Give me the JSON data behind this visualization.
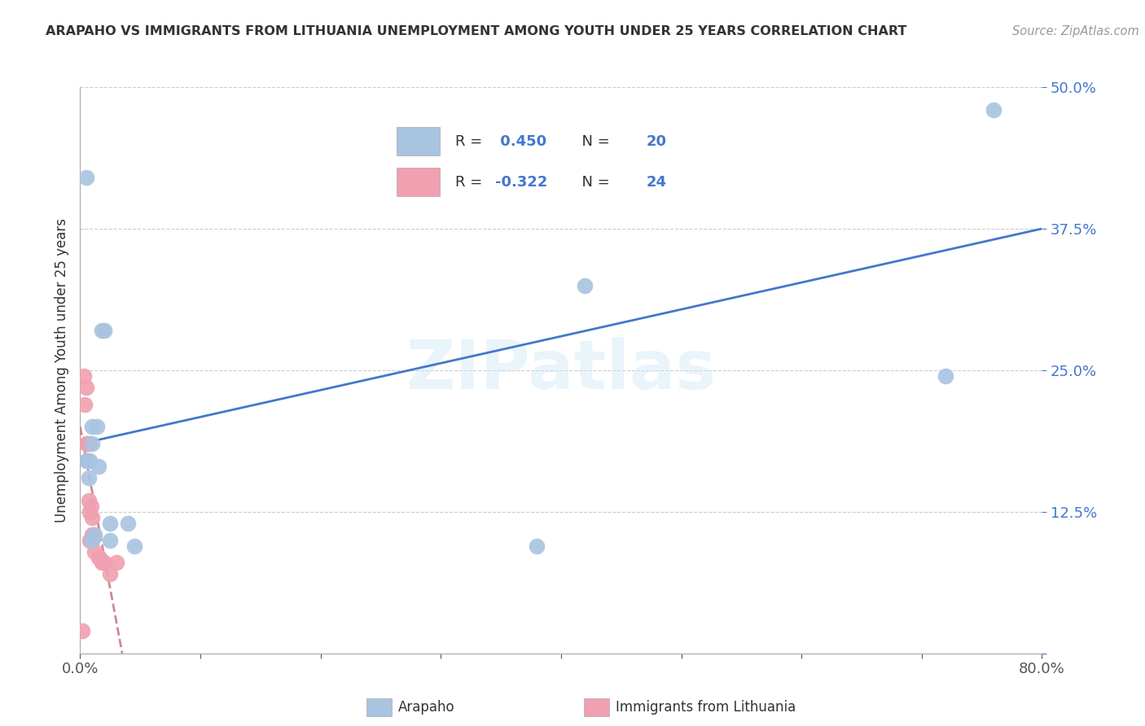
{
  "title": "ARAPAHO VS IMMIGRANTS FROM LITHUANIA UNEMPLOYMENT AMONG YOUTH UNDER 25 YEARS CORRELATION CHART",
  "source": "Source: ZipAtlas.com",
  "ylabel": "Unemployment Among Youth under 25 years",
  "xlim": [
    0.0,
    0.8
  ],
  "ylim": [
    0.0,
    0.5
  ],
  "xticks": [
    0.0,
    0.1,
    0.2,
    0.3,
    0.4,
    0.5,
    0.6,
    0.7,
    0.8
  ],
  "ytick_values": [
    0.0,
    0.125,
    0.25,
    0.375,
    0.5
  ],
  "ytick_labels": [
    "",
    "12.5%",
    "25.0%",
    "37.5%",
    "50.0%"
  ],
  "blue_R": 0.45,
  "blue_N": 20,
  "pink_R": -0.322,
  "pink_N": 24,
  "blue_color": "#a8c4e0",
  "pink_color": "#f0a0b0",
  "blue_line_color": "#4477cc",
  "pink_line_color": "#cc8899",
  "watermark": "ZIPatlas",
  "arapaho_x": [
    0.005,
    0.005,
    0.007,
    0.008,
    0.009,
    0.01,
    0.01,
    0.012,
    0.014,
    0.015,
    0.018,
    0.02,
    0.025,
    0.025,
    0.04,
    0.045,
    0.38,
    0.42,
    0.72,
    0.76
  ],
  "arapaho_y": [
    0.42,
    0.17,
    0.155,
    0.17,
    0.1,
    0.185,
    0.2,
    0.105,
    0.2,
    0.165,
    0.285,
    0.285,
    0.1,
    0.115,
    0.115,
    0.095,
    0.095,
    0.325,
    0.245,
    0.48
  ],
  "lithuania_x": [
    0.002,
    0.003,
    0.004,
    0.005,
    0.005,
    0.006,
    0.006,
    0.007,
    0.007,
    0.008,
    0.008,
    0.009,
    0.009,
    0.01,
    0.01,
    0.01,
    0.011,
    0.012,
    0.015,
    0.016,
    0.018,
    0.02,
    0.025,
    0.03
  ],
  "lithuania_y": [
    0.02,
    0.245,
    0.22,
    0.235,
    0.185,
    0.17,
    0.185,
    0.185,
    0.135,
    0.1,
    0.125,
    0.13,
    0.1,
    0.1,
    0.105,
    0.12,
    0.105,
    0.09,
    0.085,
    0.085,
    0.08,
    0.08,
    0.07,
    0.08
  ],
  "blue_trendline_x": [
    0.0,
    0.8
  ],
  "blue_trendline_y": [
    0.185,
    0.375
  ],
  "pink_trendline_x": [
    0.0,
    0.035
  ],
  "pink_trendline_y": [
    0.2,
    0.0
  ]
}
